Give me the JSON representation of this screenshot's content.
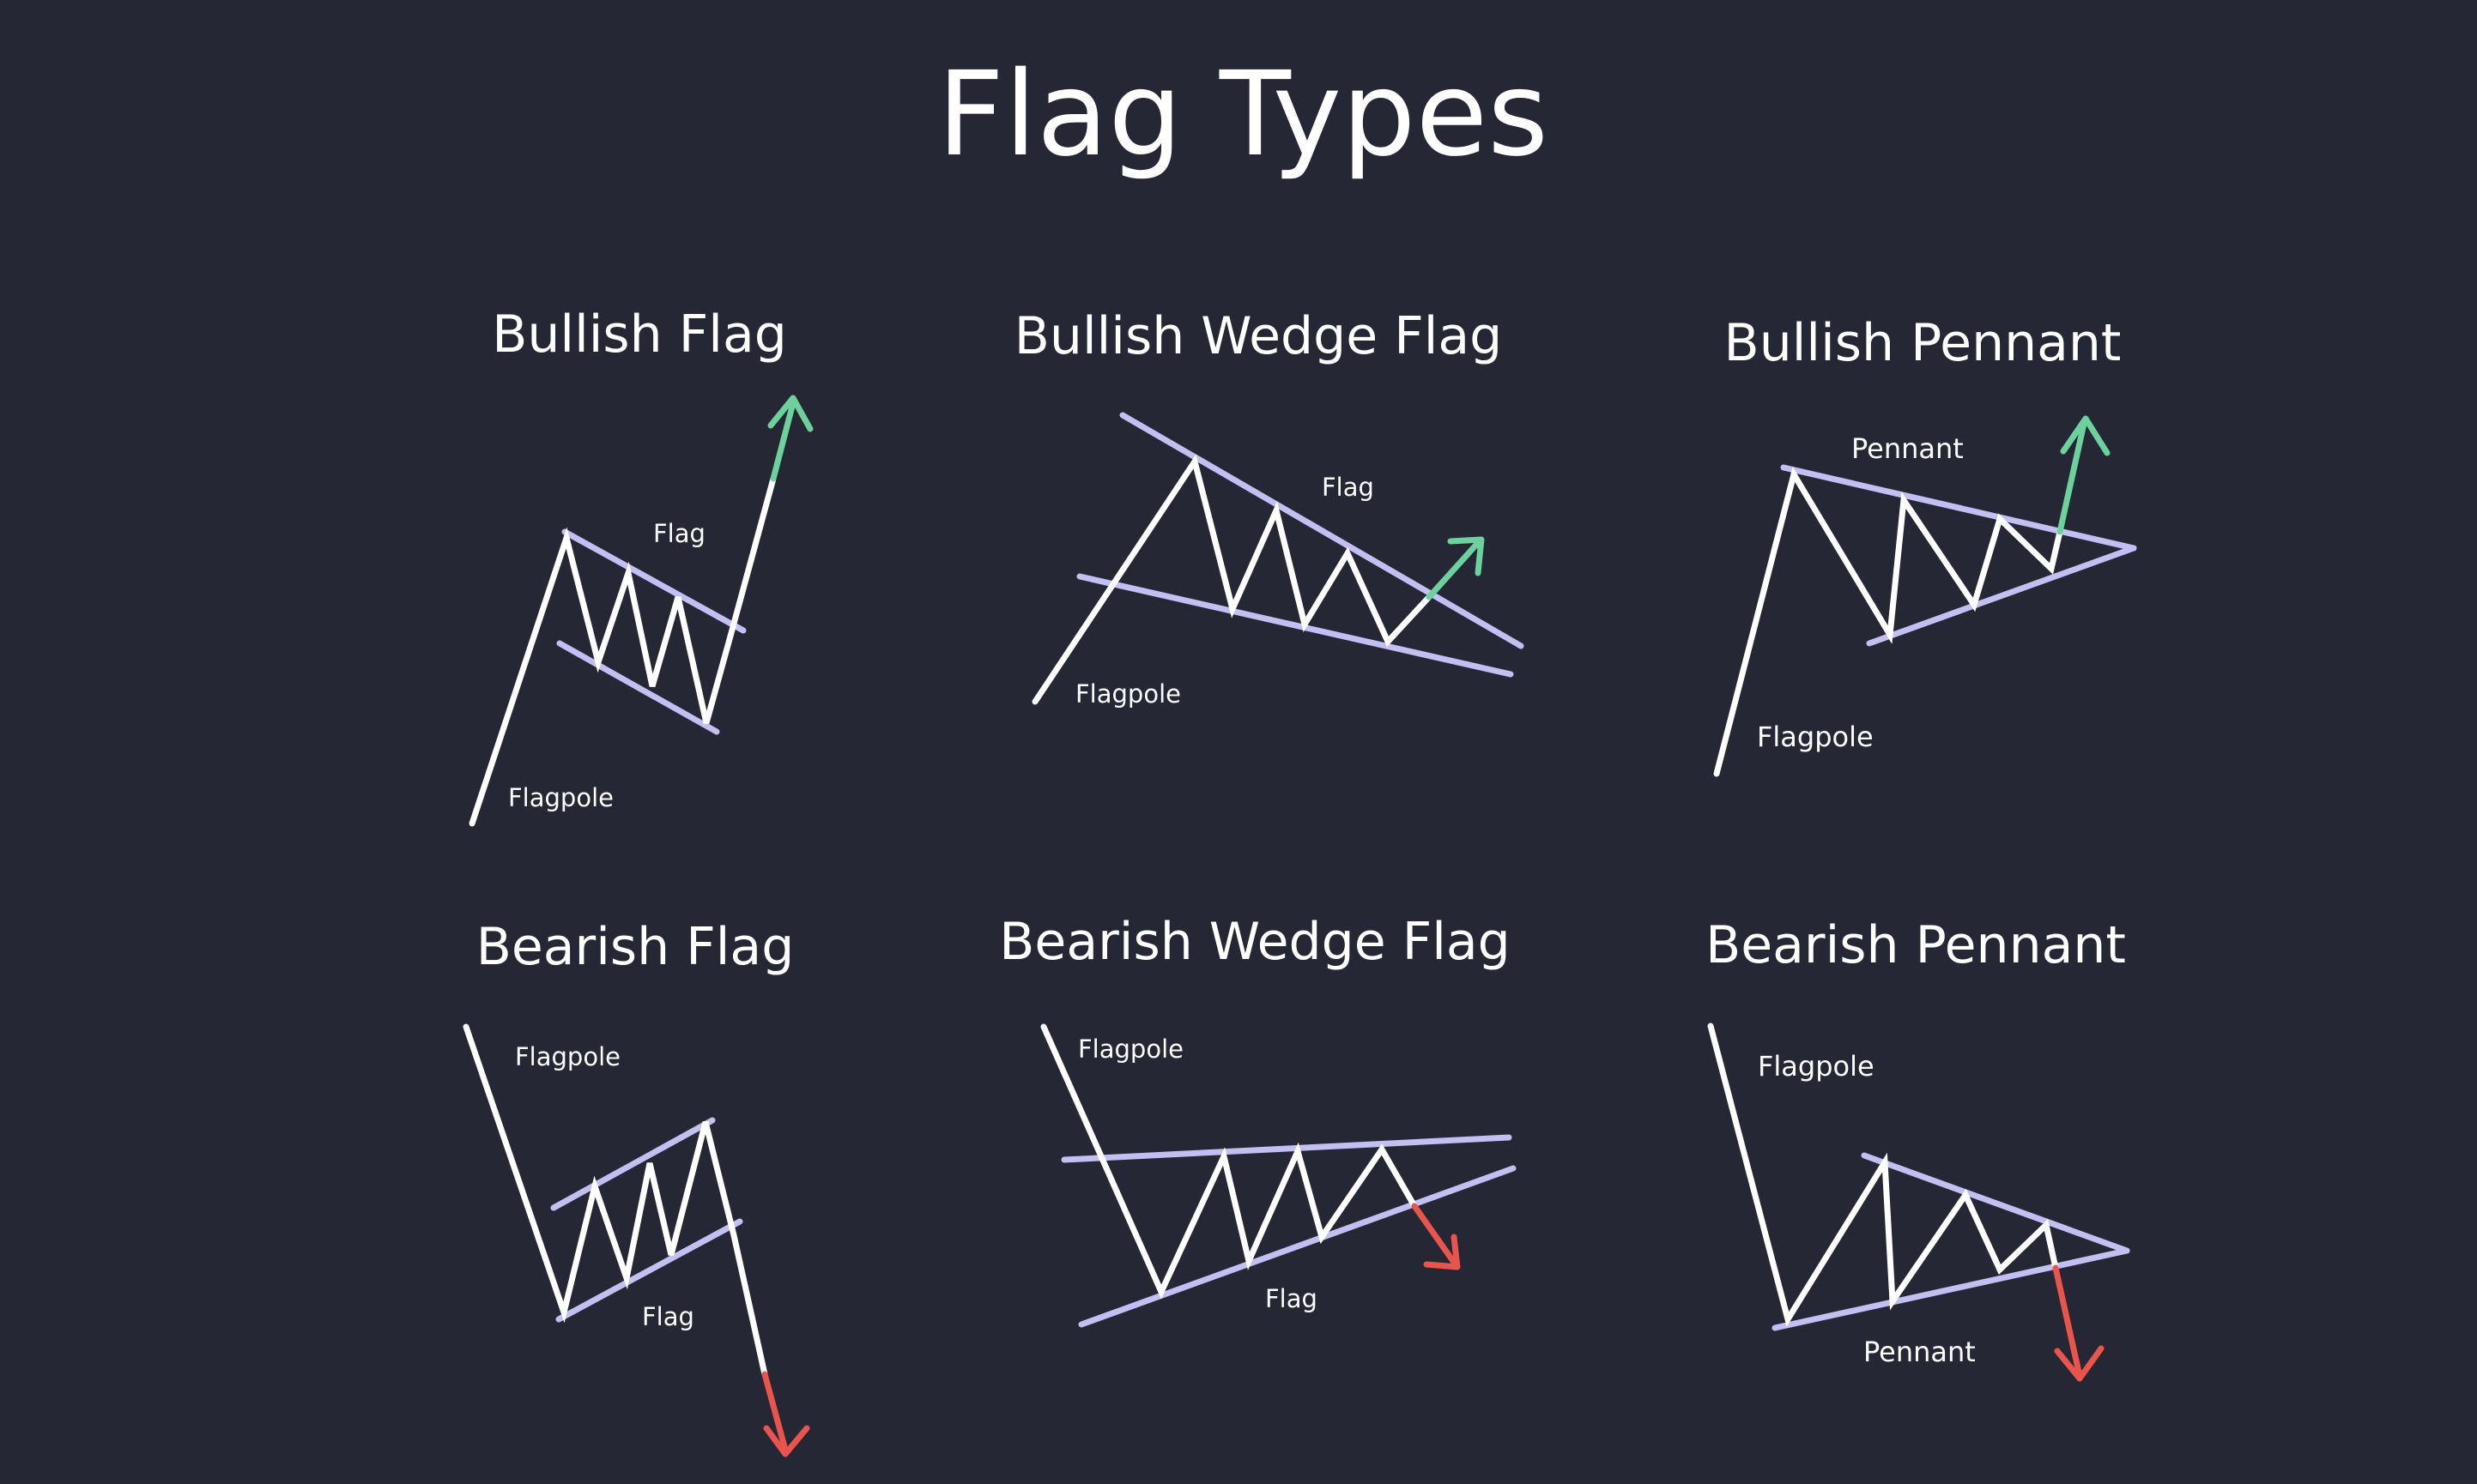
{
  "title": "Flag Types",
  "colors": {
    "background": "#252734",
    "price_line": "#ffffff",
    "trend_line": "#c2c0f3",
    "bullish_arrow": "#6cd19d",
    "bearish_arrow": "#e9554c"
  },
  "panels": [
    {
      "title": "Bullish Flag",
      "labels": [
        "Flag",
        "Flagpole"
      ]
    },
    {
      "title": "Bullish Wedge Flag",
      "labels": [
        "Flag",
        "Flagpole"
      ]
    },
    {
      "title": "Bullish Pennant",
      "labels": [
        "Pennant",
        "Flagpole"
      ]
    },
    {
      "title": "Bearish Flag",
      "labels": [
        "Flagpole",
        "Flag"
      ]
    },
    {
      "title": "Bearish Wedge Flag",
      "labels": [
        "Flagpole",
        "Flag"
      ]
    },
    {
      "title": "Bearish Pennant",
      "labels": [
        "Flagpole",
        "Pennant"
      ]
    }
  ]
}
